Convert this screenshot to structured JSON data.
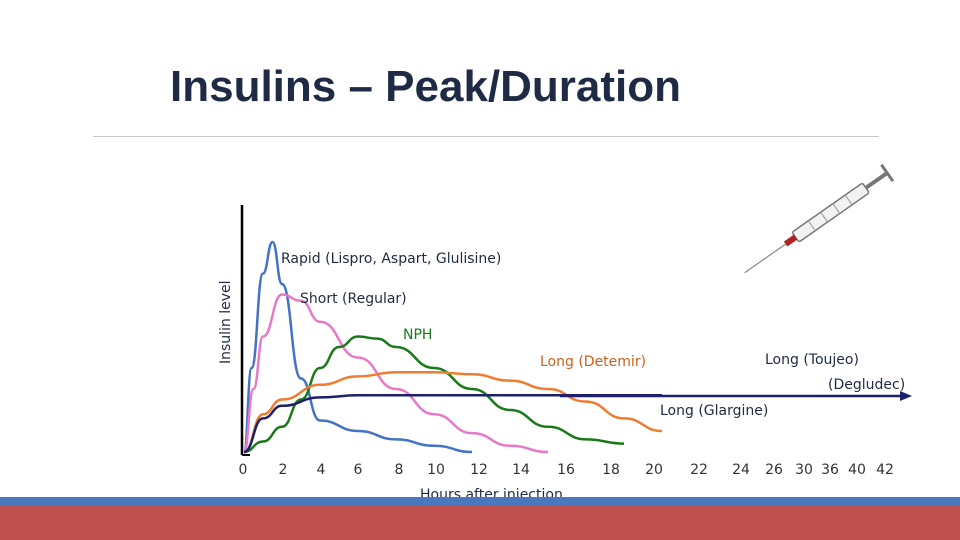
{
  "title": "Insulins – Peak/Duration",
  "chart_data": {
    "type": "line",
    "ylabel": "Insulin level",
    "xlabel": "Hours after injection",
    "x_ticks": [
      "0",
      "2",
      "4",
      "6",
      "8",
      "10",
      "12",
      "14",
      "16",
      "18",
      "20",
      "22",
      "24",
      "26",
      "30",
      "36",
      "40",
      "42"
    ],
    "series": [
      {
        "name": "Rapid (Lispro, Aspart, Glulisine)",
        "color": "#4472c4",
        "x": [
          0,
          0.4,
          1,
          1.5,
          2,
          3,
          4,
          6,
          8,
          10,
          12
        ],
        "y": [
          0,
          40,
          85,
          100,
          80,
          35,
          15,
          10,
          6,
          3,
          0
        ]
      },
      {
        "name": "Short (Regular)",
        "color": "#e879c8",
        "x": [
          0,
          0.5,
          1,
          2,
          3,
          4,
          6,
          8,
          10,
          12,
          14,
          16
        ],
        "y": [
          0,
          30,
          55,
          75,
          72,
          62,
          45,
          30,
          18,
          9,
          3,
          0
        ]
      },
      {
        "name": "NPH",
        "color": "#1a7a1a",
        "x": [
          0,
          1,
          2,
          3,
          4,
          5,
          6,
          7,
          8,
          10,
          12,
          14,
          16,
          18,
          20
        ],
        "y": [
          0,
          5,
          12,
          25,
          40,
          50,
          55,
          54,
          50,
          40,
          30,
          20,
          12,
          6,
          4
        ]
      },
      {
        "name": "Long (Detemir)",
        "color": "#ed7d31",
        "x": [
          0,
          1,
          2,
          4,
          6,
          8,
          10,
          12,
          14,
          16,
          18,
          20,
          22
        ],
        "y": [
          0,
          18,
          25,
          32,
          36,
          38,
          38,
          37,
          34,
          30,
          24,
          16,
          10
        ]
      },
      {
        "name": "Long (Glargine)",
        "color": "#1f1f6b",
        "x": [
          0,
          1,
          2,
          4,
          6,
          8,
          10,
          14,
          18,
          20,
          22
        ],
        "y": [
          0,
          16,
          22,
          26,
          27,
          27,
          27,
          27,
          27,
          27,
          27
        ]
      }
    ],
    "labels": {
      "long_toujeo_line1": "Long (Toujeo)",
      "long_toujeo_line2": "(Degludec)"
    }
  }
}
